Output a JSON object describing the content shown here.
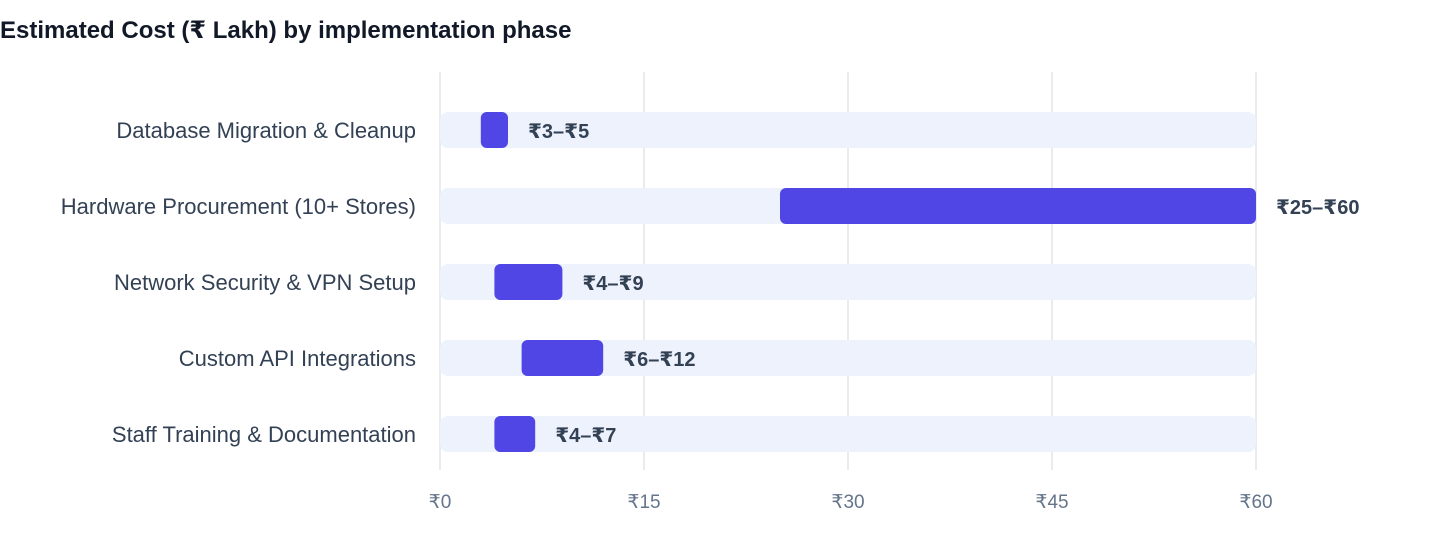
{
  "chart_data": {
    "type": "bar",
    "title": "Estimated Cost (₹ Lakh) by implementation phase",
    "categories": [
      "Database Migration & Cleanup",
      "Hardware Procurement (10+ Stores)",
      "Network Security & VPN Setup",
      "Custom API Integrations",
      "Staff Training & Documentation"
    ],
    "ranges": [
      {
        "low": 3,
        "high": 5,
        "label": "₹3–₹5"
      },
      {
        "low": 25,
        "high": 60,
        "label": "₹25–₹60"
      },
      {
        "low": 4,
        "high": 9,
        "label": "₹4–₹9"
      },
      {
        "low": 6,
        "high": 12,
        "label": "₹6–₹12"
      },
      {
        "low": 4,
        "high": 7,
        "label": "₹4–₹7"
      }
    ],
    "xlim": [
      0,
      60
    ],
    "ticks": [
      {
        "value": 0,
        "label": "₹0"
      },
      {
        "value": 15,
        "label": "₹15"
      },
      {
        "value": 30,
        "label": "₹30"
      },
      {
        "value": 45,
        "label": "₹45"
      },
      {
        "value": 60,
        "label": "₹60"
      }
    ],
    "grid": true,
    "orientation": "horizontal",
    "colors": {
      "bar": "#4f46e5",
      "track": "#eef2fd",
      "grid": "#e2e5ea",
      "tick_text": "#64748b",
      "label_text": "#334155",
      "title_text": "#111827"
    }
  }
}
